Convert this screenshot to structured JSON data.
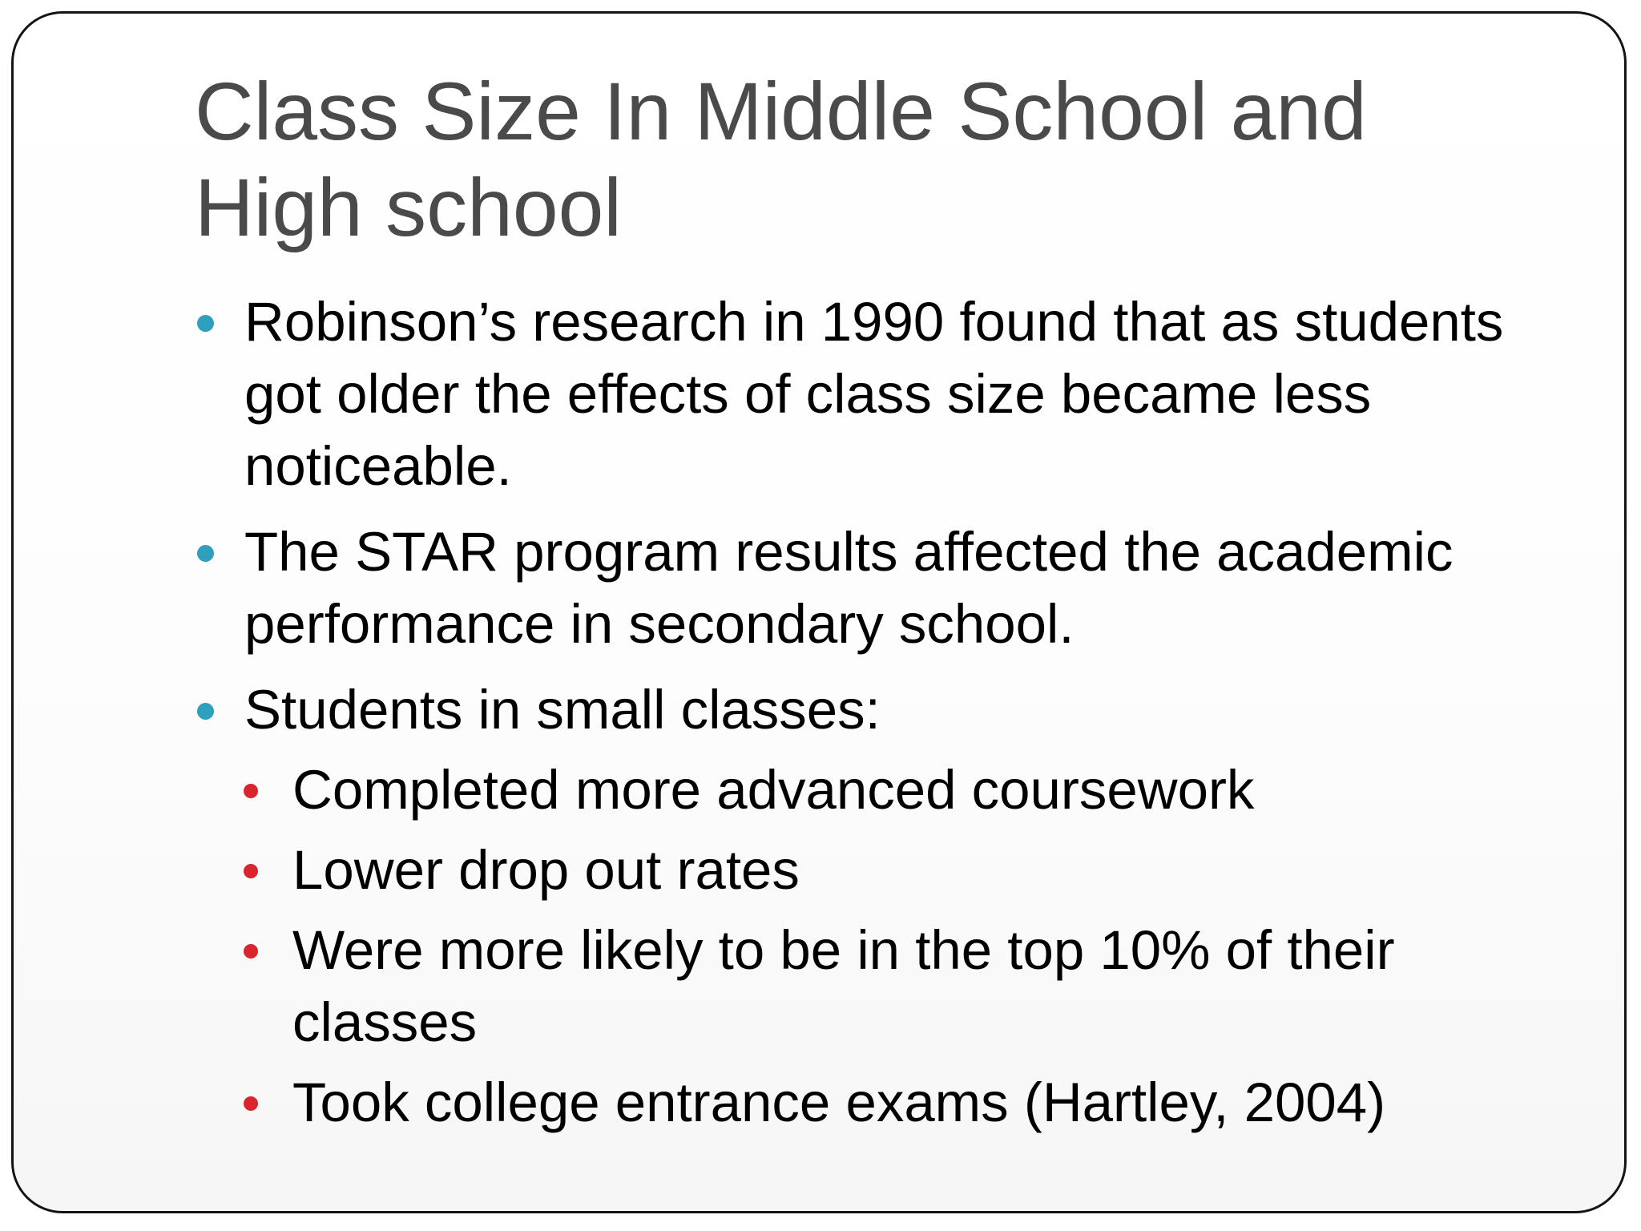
{
  "colors": {
    "level1_bullet": "#2e9fbc",
    "level2_bullet": "#d9262e",
    "title_text": "#4a4a4a",
    "body_text": "#000000",
    "frame_border": "#141414"
  },
  "slide": {
    "title_line1": "Class Size In Middle School and",
    "title_line2": "High school",
    "bullets": [
      {
        "text": "Robinson’s research in 1990 found that as students got older the effects of class size became less noticeable."
      },
      {
        "text": "The STAR program results affected the academic performance in secondary school."
      },
      {
        "text": "Students in small classes:",
        "sub": [
          {
            "text": "Completed more advanced coursework"
          },
          {
            "text": "Lower drop out rates"
          },
          {
            "text": "Were more likely to be in the top 10% of their classes"
          },
          {
            "text": "Took college entrance exams (Hartley, 2004)"
          }
        ]
      }
    ]
  }
}
